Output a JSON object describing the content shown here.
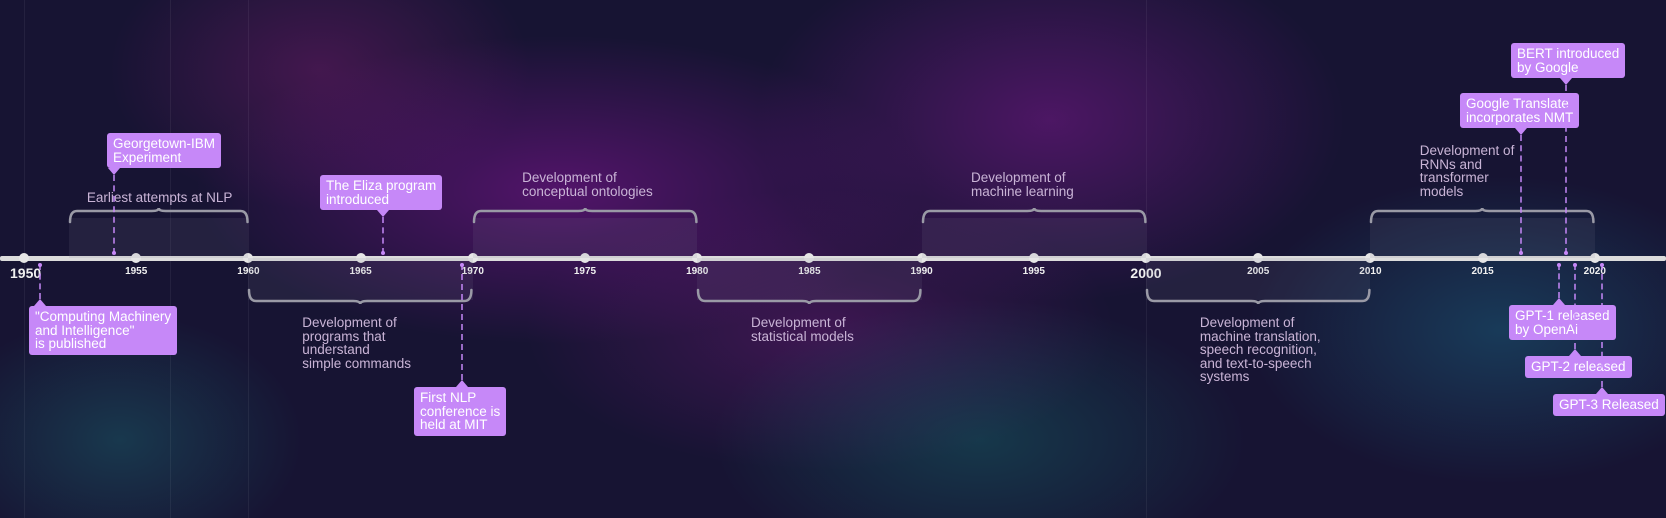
{
  "timeline": {
    "year_labels": [
      "1950",
      "1955",
      "1960",
      "1965",
      "1970",
      "1975",
      "1980",
      "1985",
      "1990",
      "1995",
      "2000",
      "2005",
      "2010",
      "2015",
      "2020"
    ],
    "major_years": [
      "1950",
      "2000"
    ],
    "periods": [
      {
        "id": "p1",
        "label": "Earliest attempts at NLP",
        "start": 1952,
        "end": 1960,
        "side": "above"
      },
      {
        "id": "p2",
        "label": "Development of\nprograms that\nunderstand\nsimple commands",
        "start": 1960,
        "end": 1970,
        "side": "below"
      },
      {
        "id": "p3",
        "label": "Development of\nconceptual ontologies",
        "start": 1970,
        "end": 1980,
        "side": "above"
      },
      {
        "id": "p4",
        "label": "Development of\nstatistical models",
        "start": 1980,
        "end": 1990,
        "side": "below"
      },
      {
        "id": "p5",
        "label": "Development of\nmachine learning",
        "start": 1990,
        "end": 2000,
        "side": "above"
      },
      {
        "id": "p6",
        "label": "Development of\nmachine translation,\nspeech recognition,\nand text-to-speech\nsystems",
        "start": 2000,
        "end": 2010,
        "side": "below"
      },
      {
        "id": "p7",
        "label": "Development of\nRNNs and\ntransformer\nmodels",
        "start": 2010,
        "end": 2020,
        "side": "above"
      }
    ],
    "events": [
      {
        "id": "e1",
        "label": "\"Computing Machinery\nand Intelligence\"\nis published",
        "year": 1950.7,
        "side": "below"
      },
      {
        "id": "e2",
        "label": "Georgetown-IBM\nExperiment",
        "year": 1954,
        "side": "above"
      },
      {
        "id": "e3",
        "label": "The Eliza program\nintroduced",
        "year": 1966,
        "side": "above"
      },
      {
        "id": "e4",
        "label": "First NLP\nconference is\nheld at MIT",
        "year": 1969.5,
        "side": "below"
      },
      {
        "id": "e5",
        "label": "Google Translate\nincorporates NMT",
        "year": 2016.7,
        "side": "above"
      },
      {
        "id": "e6",
        "label": "BERT introduced\nby Google",
        "year": 2018.7,
        "side": "above"
      },
      {
        "id": "e7",
        "label": "GPT-1 released\nby OpenAi",
        "year": 2018.4,
        "side": "below"
      },
      {
        "id": "e8",
        "label": "GPT-2 released",
        "year": 2019.1,
        "side": "below"
      },
      {
        "id": "e9",
        "label": "GPT-3 Released",
        "year": 2020.3,
        "side": "below"
      }
    ]
  },
  "colors": {
    "event_box": "#c688f8",
    "period_text": "#c9b4d6",
    "axis": "#dcdcdc",
    "background": "#171433"
  }
}
